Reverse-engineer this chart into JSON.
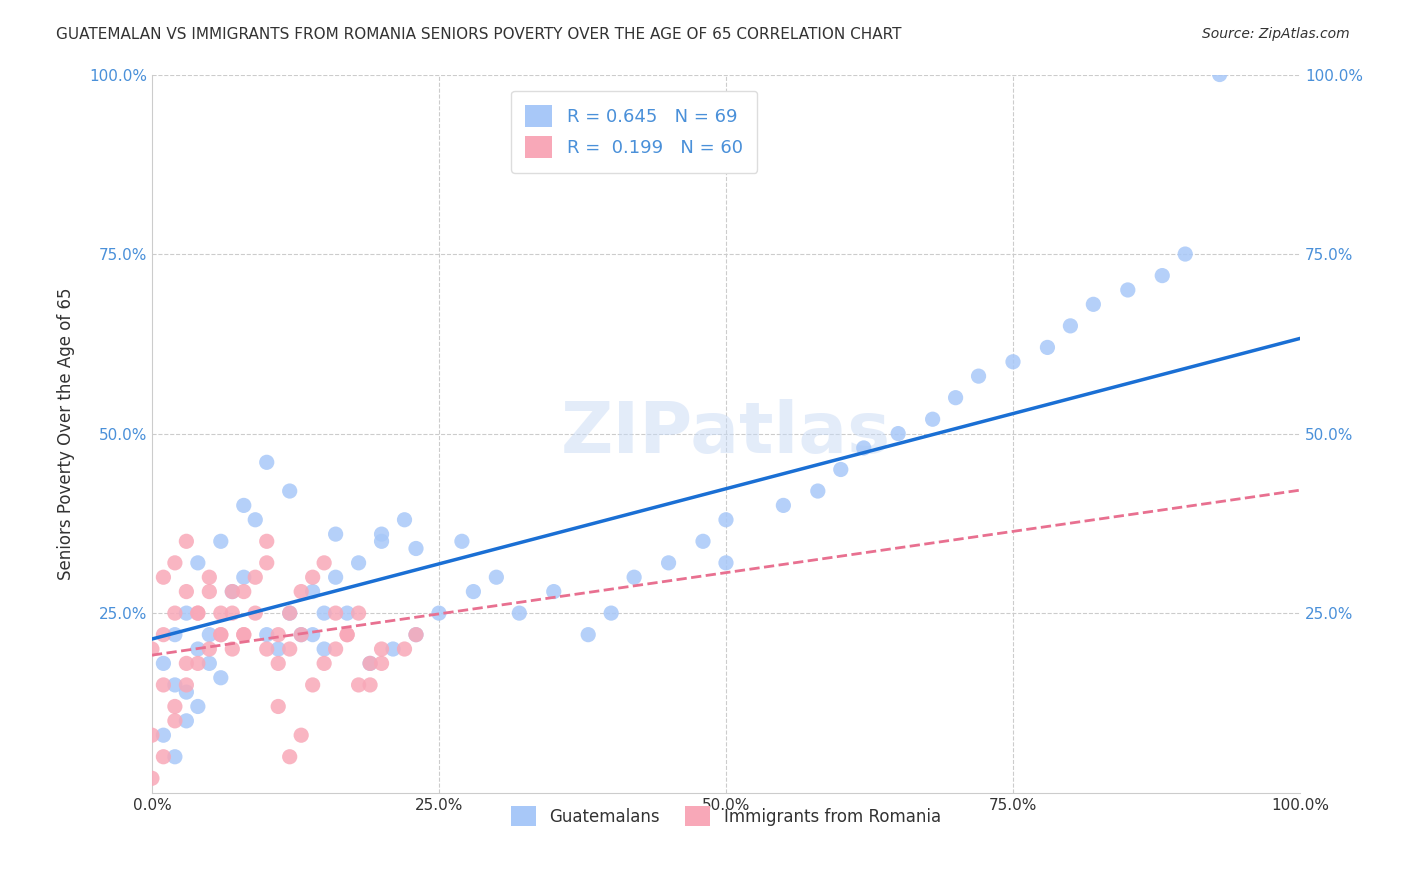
{
  "title": "GUATEMALAN VS IMMIGRANTS FROM ROMANIA SENIORS POVERTY OVER THE AGE OF 65 CORRELATION CHART",
  "source": "Source: ZipAtlas.com",
  "xlabel": "",
  "ylabel": "Seniors Poverty Over the Age of 65",
  "xlim": [
    0,
    1.0
  ],
  "ylim": [
    0,
    1.0
  ],
  "xticks": [
    0.0,
    0.25,
    0.5,
    0.75,
    1.0
  ],
  "yticks": [
    0.0,
    0.25,
    0.5,
    0.75,
    1.0
  ],
  "xticklabels": [
    "0.0%",
    "25.0%",
    "50.0%",
    "75.0%",
    "100.0%"
  ],
  "yticklabels": [
    "",
    "25.0%",
    "50.0%",
    "75.0%",
    "100.0%"
  ],
  "r_guatemalan": 0.645,
  "n_guatemalan": 69,
  "r_romania": 0.199,
  "n_romania": 60,
  "guatemalan_color": "#a8c8f8",
  "romania_color": "#f8a8b8",
  "line_guatemalan_color": "#1a6fd4",
  "line_romania_color": "#e87090",
  "watermark": "ZIPatlas",
  "legend_label_guatemalan": "Guatemalans",
  "legend_label_romania": "Immigrants from Romania",
  "guatemalan_x": [
    0.02,
    0.03,
    0.01,
    0.04,
    0.02,
    0.05,
    0.03,
    0.06,
    0.04,
    0.02,
    0.01,
    0.03,
    0.05,
    0.07,
    0.08,
    0.06,
    0.04,
    0.09,
    0.1,
    0.12,
    0.08,
    0.11,
    0.13,
    0.15,
    0.14,
    0.16,
    0.18,
    0.2,
    0.22,
    0.1,
    0.12,
    0.15,
    0.14,
    0.17,
    0.19,
    0.21,
    0.23,
    0.25,
    0.28,
    0.3,
    0.27,
    0.32,
    0.35,
    0.38,
    0.4,
    0.42,
    0.45,
    0.48,
    0.5,
    0.55,
    0.58,
    0.6,
    0.62,
    0.65,
    0.68,
    0.7,
    0.72,
    0.75,
    0.78,
    0.8,
    0.82,
    0.85,
    0.88,
    0.9,
    0.16,
    0.2,
    0.23,
    0.5,
    0.93
  ],
  "guatemalan_y": [
    0.05,
    0.1,
    0.08,
    0.12,
    0.15,
    0.18,
    0.14,
    0.16,
    0.2,
    0.22,
    0.18,
    0.25,
    0.22,
    0.28,
    0.3,
    0.35,
    0.32,
    0.38,
    0.22,
    0.25,
    0.4,
    0.2,
    0.22,
    0.25,
    0.28,
    0.3,
    0.32,
    0.35,
    0.38,
    0.46,
    0.42,
    0.2,
    0.22,
    0.25,
    0.18,
    0.2,
    0.22,
    0.25,
    0.28,
    0.3,
    0.35,
    0.25,
    0.28,
    0.22,
    0.25,
    0.3,
    0.32,
    0.35,
    0.38,
    0.4,
    0.42,
    0.45,
    0.48,
    0.5,
    0.52,
    0.55,
    0.58,
    0.6,
    0.62,
    0.65,
    0.68,
    0.7,
    0.72,
    0.75,
    0.36,
    0.36,
    0.34,
    0.32,
    1.0
  ],
  "romania_x": [
    0.0,
    0.01,
    0.0,
    0.02,
    0.01,
    0.03,
    0.02,
    0.0,
    0.01,
    0.02,
    0.03,
    0.01,
    0.02,
    0.03,
    0.04,
    0.05,
    0.06,
    0.04,
    0.07,
    0.08,
    0.05,
    0.06,
    0.07,
    0.08,
    0.09,
    0.1,
    0.11,
    0.12,
    0.13,
    0.14,
    0.03,
    0.04,
    0.05,
    0.06,
    0.07,
    0.08,
    0.09,
    0.1,
    0.11,
    0.12,
    0.13,
    0.14,
    0.15,
    0.16,
    0.17,
    0.18,
    0.19,
    0.2,
    0.22,
    0.23,
    0.15,
    0.16,
    0.17,
    0.18,
    0.19,
    0.2,
    0.1,
    0.11,
    0.12,
    0.13
  ],
  "romania_y": [
    0.02,
    0.05,
    0.08,
    0.12,
    0.15,
    0.18,
    0.1,
    0.2,
    0.22,
    0.25,
    0.28,
    0.3,
    0.32,
    0.35,
    0.25,
    0.28,
    0.22,
    0.25,
    0.2,
    0.22,
    0.3,
    0.25,
    0.28,
    0.22,
    0.25,
    0.2,
    0.22,
    0.25,
    0.28,
    0.3,
    0.15,
    0.18,
    0.2,
    0.22,
    0.25,
    0.28,
    0.3,
    0.32,
    0.18,
    0.2,
    0.22,
    0.15,
    0.18,
    0.2,
    0.22,
    0.25,
    0.15,
    0.18,
    0.2,
    0.22,
    0.32,
    0.25,
    0.22,
    0.15,
    0.18,
    0.2,
    0.35,
    0.12,
    0.05,
    0.08
  ]
}
